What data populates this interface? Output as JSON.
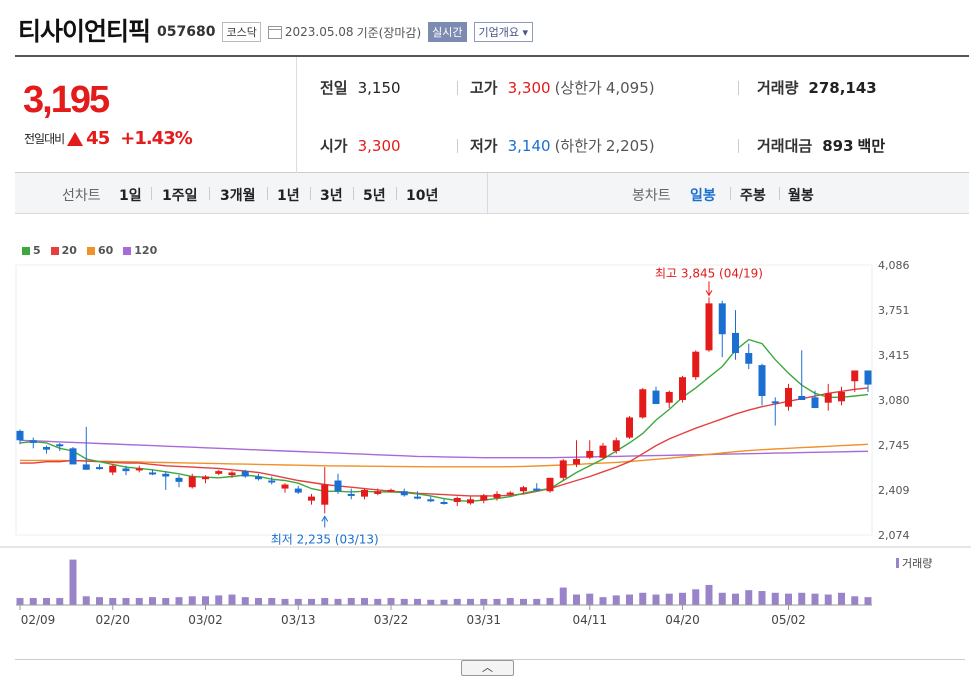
{
  "header": {
    "name": "티사이언티픽",
    "code": "057680",
    "market": "코스닥",
    "date": "2023.05.08",
    "basis": "기준(장마감)",
    "realtime": "실시간",
    "company": "기업개요"
  },
  "summary": {
    "price": "3,195",
    "change_label": "전일대비",
    "change": "45",
    "change_pct": "+1.43%",
    "prev_label": "전일",
    "prev": "3,150",
    "open_label": "시가",
    "open": "3,300",
    "high_label": "고가",
    "high": "3,300",
    "upper_label": "(상한가",
    "upper": "4,095)",
    "low_label": "저가",
    "low": "3,140",
    "lower_label": "(하한가",
    "lower": "2,205)",
    "volume_label": "거래량",
    "volume": "278,143",
    "amount_label": "거래대금",
    "amount": "893",
    "amount_unit": "백만"
  },
  "periods": {
    "line_label": "선차트",
    "items": [
      "1일",
      "1주일",
      "3개월",
      "1년",
      "3년",
      "5년",
      "10년"
    ],
    "candle_label": "봉차트",
    "candle_items": [
      "일봉",
      "주봉",
      "월봉"
    ]
  },
  "legend": [
    {
      "name": "5",
      "color": "#3ea83e"
    },
    {
      "name": "20",
      "color": "#e4403f"
    },
    {
      "name": "60",
      "color": "#f0922b"
    },
    {
      "name": "120",
      "color": "#a86ad6"
    }
  ],
  "colors": {
    "up": "#e41b1b",
    "down": "#1a6fd1",
    "volume": "#9a84c9"
  },
  "chart_data": {
    "type": "candlestick",
    "y_ticks": [
      "4,086",
      "3,751",
      "3,415",
      "3,080",
      "2,745",
      "2,409",
      "2,074"
    ],
    "ylim": [
      2074,
      4086
    ],
    "x_labels": [
      "02/09",
      "02/20",
      "03/02",
      "03/13",
      "03/22",
      "03/31",
      "04/11",
      "04/20",
      "05/02"
    ],
    "high_note": "최고 3,845 (04/19)",
    "low_note": "최저 2,235 (03/13)",
    "volume_label": "거래량",
    "ohlc": [
      [
        2850,
        2860,
        2750,
        2780
      ],
      [
        2780,
        2800,
        2720,
        2760
      ],
      [
        2730,
        2740,
        2680,
        2710
      ],
      [
        2750,
        2760,
        2700,
        2740
      ],
      [
        2720,
        2730,
        2600,
        2600
      ],
      [
        2600,
        2880,
        2570,
        2560
      ],
      [
        2580,
        2600,
        2560,
        2570
      ],
      [
        2540,
        2600,
        2520,
        2590
      ],
      [
        2570,
        2590,
        2520,
        2550
      ],
      [
        2560,
        2590,
        2540,
        2570
      ],
      [
        2540,
        2560,
        2520,
        2530
      ],
      [
        2530,
        2550,
        2410,
        2510
      ],
      [
        2500,
        2520,
        2430,
        2470
      ],
      [
        2430,
        2530,
        2420,
        2510
      ],
      [
        2490,
        2520,
        2460,
        2510
      ],
      [
        2530,
        2560,
        2520,
        2550
      ],
      [
        2520,
        2550,
        2500,
        2540
      ],
      [
        2550,
        2560,
        2500,
        2510
      ],
      [
        2510,
        2530,
        2480,
        2490
      ],
      [
        2480,
        2510,
        2450,
        2470
      ],
      [
        2420,
        2460,
        2390,
        2450
      ],
      [
        2420,
        2440,
        2380,
        2390
      ],
      [
        2330,
        2380,
        2300,
        2360
      ],
      [
        2300,
        2580,
        2235,
        2450
      ],
      [
        2480,
        2530,
        2380,
        2400
      ],
      [
        2380,
        2420,
        2340,
        2370
      ],
      [
        2360,
        2420,
        2340,
        2410
      ],
      [
        2380,
        2420,
        2370,
        2400
      ],
      [
        2410,
        2420,
        2390,
        2410
      ],
      [
        2400,
        2420,
        2360,
        2370
      ],
      [
        2360,
        2400,
        2340,
        2350
      ],
      [
        2340,
        2360,
        2320,
        2330
      ],
      [
        2320,
        2340,
        2300,
        2310
      ],
      [
        2320,
        2360,
        2290,
        2350
      ],
      [
        2310,
        2360,
        2300,
        2340
      ],
      [
        2330,
        2380,
        2310,
        2370
      ],
      [
        2350,
        2400,
        2330,
        2380
      ],
      [
        2380,
        2400,
        2370,
        2390
      ],
      [
        2400,
        2440,
        2380,
        2430
      ],
      [
        2420,
        2460,
        2400,
        2410
      ],
      [
        2400,
        2500,
        2390,
        2500
      ],
      [
        2500,
        2640,
        2480,
        2630
      ],
      [
        2600,
        2780,
        2580,
        2640
      ],
      [
        2650,
        2780,
        2640,
        2700
      ],
      [
        2650,
        2760,
        2640,
        2740
      ],
      [
        2700,
        2800,
        2680,
        2780
      ],
      [
        2800,
        2960,
        2790,
        2950
      ],
      [
        2950,
        3170,
        2940,
        3160
      ],
      [
        3150,
        3180,
        3050,
        3050
      ],
      [
        3060,
        3150,
        3020,
        3140
      ],
      [
        3080,
        3260,
        3060,
        3250
      ],
      [
        3250,
        3450,
        3230,
        3440
      ],
      [
        3450,
        3845,
        3440,
        3800
      ],
      [
        3800,
        3820,
        3400,
        3570
      ],
      [
        3580,
        3750,
        3380,
        3430
      ],
      [
        3430,
        3500,
        3310,
        3350
      ],
      [
        3340,
        3350,
        3040,
        3110
      ],
      [
        3070,
        3100,
        2890,
        3060
      ],
      [
        3030,
        3200,
        3000,
        3170
      ],
      [
        3110,
        3450,
        3090,
        3080
      ],
      [
        3100,
        3150,
        3040,
        3020
      ],
      [
        3060,
        3200,
        3000,
        3130
      ],
      [
        3070,
        3180,
        3040,
        3140
      ],
      [
        3220,
        3300,
        3140,
        3300
      ],
      [
        3300,
        3300,
        3140,
        3195
      ]
    ],
    "ma5": [
      2760,
      2770,
      2760,
      2720,
      2700,
      2640,
      2620,
      2600,
      2580,
      2570,
      2560,
      2545,
      2530,
      2510,
      2505,
      2500,
      2510,
      2520,
      2510,
      2490,
      2480,
      2460,
      2420,
      2400,
      2400,
      2395,
      2400,
      2395,
      2395,
      2390,
      2380,
      2365,
      2345,
      2330,
      2325,
      2335,
      2345,
      2360,
      2385,
      2405,
      2420,
      2480,
      2540,
      2590,
      2640,
      2700,
      2760,
      2830,
      2930,
      3010,
      3100,
      3170,
      3250,
      3330,
      3450,
      3530,
      3500,
      3380,
      3280,
      3190,
      3130,
      3100,
      3100,
      3110,
      3120
    ],
    "ma20": [
      2610,
      2610,
      2620,
      2620,
      2630,
      2625,
      2620,
      2615,
      2610,
      2610,
      2600,
      2590,
      2585,
      2580,
      2575,
      2570,
      2560,
      2550,
      2540,
      2520,
      2500,
      2480,
      2465,
      2450,
      2440,
      2430,
      2420,
      2410,
      2400,
      2395,
      2385,
      2380,
      2375,
      2370,
      2365,
      2365,
      2365,
      2370,
      2380,
      2400,
      2420,
      2450,
      2480,
      2510,
      2545,
      2580,
      2620,
      2680,
      2740,
      2790,
      2830,
      2870,
      2905,
      2940,
      2975,
      3005,
      3030,
      3050,
      3070,
      3090,
      3110,
      3130,
      3145,
      3160,
      3170
    ],
    "ma60": [
      2630,
      2630,
      2630,
      2630,
      2628,
      2626,
      2624,
      2622,
      2620,
      2618,
      2616,
      2614,
      2612,
      2610,
      2608,
      2606,
      2604,
      2602,
      2600,
      2598,
      2596,
      2594,
      2592,
      2590,
      2589,
      2588,
      2587,
      2586,
      2585,
      2584,
      2583,
      2582,
      2582,
      2582,
      2582,
      2582,
      2582,
      2583,
      2585,
      2588,
      2592,
      2596,
      2600,
      2605,
      2610,
      2615,
      2622,
      2630,
      2638,
      2646,
      2655,
      2665,
      2675,
      2685,
      2695,
      2703,
      2710,
      2715,
      2720,
      2725,
      2730,
      2735,
      2740,
      2745,
      2750
    ],
    "ma120": [
      2780,
      2776,
      2772,
      2768,
      2764,
      2760,
      2756,
      2752,
      2748,
      2744,
      2740,
      2736,
      2732,
      2728,
      2724,
      2720,
      2716,
      2712,
      2708,
      2704,
      2700,
      2696,
      2692,
      2688,
      2684,
      2680,
      2676,
      2672,
      2668,
      2664,
      2660,
      2658,
      2656,
      2654,
      2652,
      2650,
      2650,
      2650,
      2650,
      2650,
      2650,
      2652,
      2654,
      2656,
      2658,
      2660,
      2662,
      2664,
      2666,
      2668,
      2670,
      2672,
      2674,
      2676,
      2678,
      2680,
      2682,
      2684,
      2686,
      2688,
      2690,
      2692,
      2694,
      2696,
      2698
    ],
    "volume": [
      8,
      8,
      8,
      8,
      52,
      10,
      9,
      8,
      8,
      8,
      9,
      8,
      9,
      10,
      10,
      11,
      12,
      9,
      8,
      8,
      7,
      7,
      7,
      8,
      7,
      8,
      8,
      7,
      8,
      7,
      7,
      6,
      6,
      7,
      7,
      7,
      7,
      8,
      7,
      7,
      8,
      20,
      12,
      13,
      9,
      11,
      12,
      14,
      12,
      13,
      14,
      18,
      23,
      14,
      13,
      17,
      16,
      14,
      13,
      14,
      13,
      12,
      14,
      10,
      9
    ],
    "high_index": 52,
    "low_index": 23
  }
}
